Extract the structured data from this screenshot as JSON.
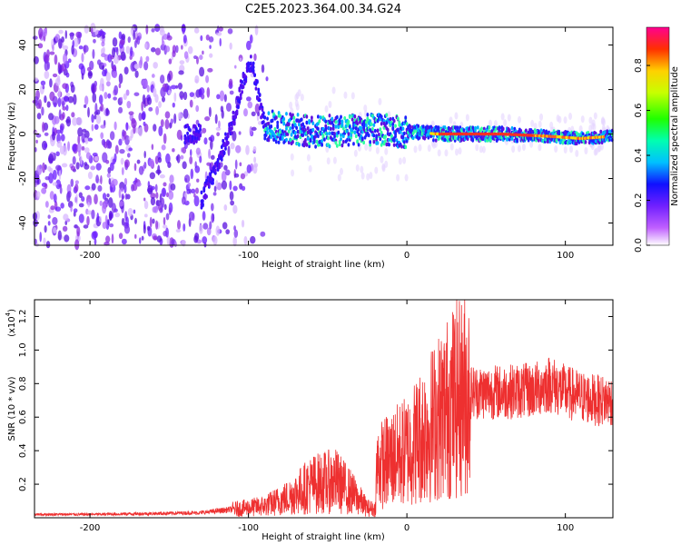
{
  "title": "C2E5.2023.364.00.34.G24",
  "colors": {
    "snr_line": "#ee3030",
    "axis": "#000000"
  },
  "spectrogram": {
    "type": "heatmap",
    "xlabel": "Height of straight line (km)",
    "ylabel": "Frequency (Hz)",
    "xlim": [
      -235,
      130
    ],
    "ylim": [
      -50,
      48
    ],
    "x_ticks": [
      "-200",
      "-100",
      "0",
      "100"
    ],
    "x_tick_values": [
      -200,
      -100,
      0,
      100
    ],
    "y_ticks": [
      "40",
      "20",
      "0",
      "-20",
      "-40"
    ],
    "y_tick_values": [
      40,
      20,
      0,
      -20,
      -40
    ],
    "colorbar": {
      "label": "Normalized spectral amplitude",
      "range": [
        0,
        0.97
      ],
      "ticks": [
        "0.0",
        "0.2",
        "0.4",
        "0.6",
        "0.8"
      ],
      "tick_values": [
        0.0,
        0.2,
        0.4,
        0.6,
        0.8
      ]
    },
    "ridge_points": [
      {
        "x": -130,
        "f": -30
      },
      {
        "x": -120,
        "f": -15
      },
      {
        "x": -110,
        "f": 5
      },
      {
        "x": -103,
        "f": 25
      },
      {
        "x": -98,
        "f": 33
      },
      {
        "x": -90,
        "f": 4
      },
      {
        "x": -60,
        "f": 1
      },
      {
        "x": -20,
        "f": 2
      },
      {
        "x": 0,
        "f": 1
      },
      {
        "x": 20,
        "f": 0
      },
      {
        "x": 60,
        "f": 0
      },
      {
        "x": 90,
        "f": -1
      },
      {
        "x": 110,
        "f": -2
      },
      {
        "x": 130,
        "f": -1
      }
    ]
  },
  "chart_data": {
    "type": "line",
    "xlabel": "Height of straight line (km)",
    "ylabel": "SNR (10 * v/v)",
    "y_multiplier": "(x10",
    "y_multiplier_exp": "4",
    "y_multiplier_close": ")",
    "xlim": [
      -235,
      130
    ],
    "ylim": [
      0,
      1.3
    ],
    "x_ticks": [
      "-200",
      "-100",
      "0",
      "100"
    ],
    "x_tick_values": [
      -200,
      -100,
      0,
      100
    ],
    "y_ticks": [
      "1.2",
      "1.0",
      "0.8",
      "0.6",
      "0.4",
      "0.2"
    ],
    "y_tick_values": [
      1.2,
      1.0,
      0.8,
      0.6,
      0.4,
      0.2
    ],
    "series": [
      {
        "x": [
          -235,
          -200,
          -160,
          -130,
          -110,
          -90,
          -75,
          -60,
          -45,
          -35,
          -25,
          -20,
          -19,
          -10,
          0,
          10,
          20,
          30,
          40,
          60,
          80,
          90,
          100,
          110,
          120,
          130
        ],
        "y": [
          0.02,
          0.02,
          0.025,
          0.03,
          0.05,
          0.07,
          0.12,
          0.2,
          0.22,
          0.15,
          0.06,
          0.05,
          0.3,
          0.35,
          0.4,
          0.5,
          0.6,
          0.7,
          0.75,
          0.75,
          0.76,
          0.8,
          0.75,
          0.72,
          0.7,
          0.7
        ]
      }
    ]
  }
}
